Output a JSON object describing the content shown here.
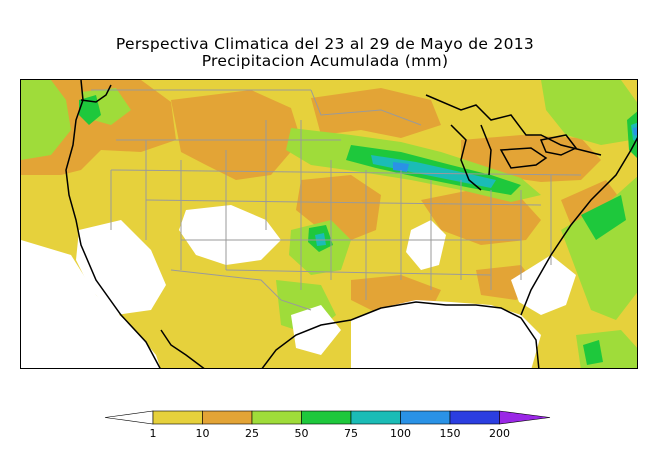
{
  "title": {
    "line1": "Perspectiva Climatica del 23 al 29 de Mayo de 2013",
    "line2": "Precipitacion Acumulada (mm)"
  },
  "legend": {
    "bins": [
      {
        "color": "#ffffff"
      },
      {
        "color": "#e6d13c"
      },
      {
        "color": "#e3a436"
      },
      {
        "color": "#9fdc3a"
      },
      {
        "color": "#1ec83c"
      },
      {
        "color": "#1bbcb6"
      },
      {
        "color": "#2a92e6"
      },
      {
        "color": "#2b3ee0"
      },
      {
        "color": "#9a27e6"
      }
    ],
    "tick_labels": [
      "1",
      "10",
      "25",
      "50",
      "75",
      "100",
      "150",
      "200"
    ]
  },
  "map": {
    "layers": [
      "coastlines",
      "state-borders",
      "country-borders",
      "lakes"
    ],
    "palette": {
      "water": "#ffffff",
      "lt1": "#ffffff",
      "p1_10": "#e6d13c",
      "p10_25": "#e3a436",
      "p25_50": "#9fdc3a",
      "p50_75": "#1ec83c",
      "p75_100": "#1bbcb6",
      "p100_150": "#2a92e6",
      "border": "#9a9a9a",
      "coast": "#000000"
    }
  }
}
